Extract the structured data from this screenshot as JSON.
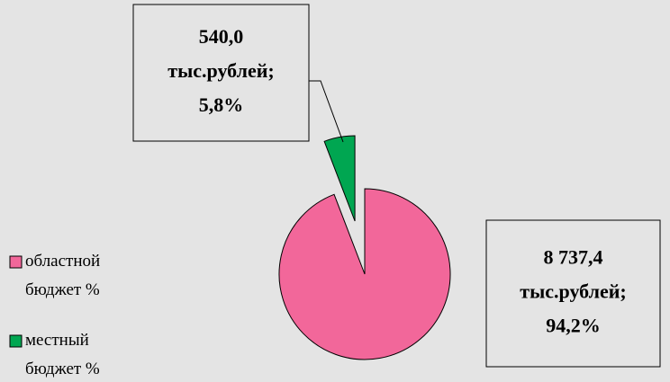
{
  "chart_data": {
    "type": "pie",
    "categories": [
      "областной\nбюджет %",
      "местный\nбюджет %"
    ],
    "values": [
      8737.4,
      540.0
    ],
    "value_labels": [
      "8 737,4\nтыс.рублей;\n94,2%",
      "540,0\nтыс.рублей;\n5,8%"
    ],
    "colors": [
      "#f2679a",
      "#00a651"
    ],
    "exploded": [
      false,
      true
    ]
  }
}
